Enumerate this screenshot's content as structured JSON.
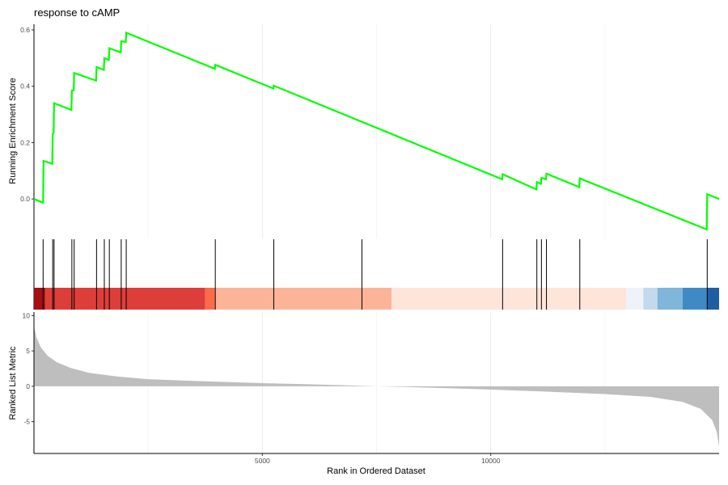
{
  "chart_data": {
    "type": "line",
    "title": "response to cAMP",
    "xlabel": "Rank in Ordered Dataset",
    "xlim": [
      0,
      15000
    ],
    "x_ticks": [
      5000,
      10000
    ],
    "panels": {
      "enrichment": {
        "ylabel": "Running Enrichment Score",
        "ylim": [
          -0.14,
          0.62
        ],
        "y_ticks": [
          "0.6",
          "0.4",
          "0.2",
          "0.0"
        ],
        "y_tick_values": [
          0.6,
          0.4,
          0.2,
          0.0
        ],
        "line_color": "#00ff00",
        "points": [
          [
            0,
            0.0
          ],
          [
            200,
            -0.013
          ],
          [
            210,
            0.135
          ],
          [
            400,
            0.125
          ],
          [
            410,
            0.23
          ],
          [
            430,
            0.235
          ],
          [
            440,
            0.34
          ],
          [
            820,
            0.316
          ],
          [
            830,
            0.385
          ],
          [
            870,
            0.385
          ],
          [
            880,
            0.447
          ],
          [
            1360,
            0.42
          ],
          [
            1370,
            0.468
          ],
          [
            1530,
            0.458
          ],
          [
            1540,
            0.5
          ],
          [
            1640,
            0.493
          ],
          [
            1650,
            0.535
          ],
          [
            1900,
            0.52
          ],
          [
            1910,
            0.56
          ],
          [
            2010,
            0.557
          ],
          [
            2020,
            0.59
          ],
          [
            3960,
            0.462
          ],
          [
            3970,
            0.476
          ],
          [
            5240,
            0.392
          ],
          [
            5250,
            0.402
          ],
          [
            10250,
            0.07
          ],
          [
            10260,
            0.088
          ],
          [
            11000,
            0.034
          ],
          [
            11010,
            0.06
          ],
          [
            11100,
            0.054
          ],
          [
            11110,
            0.075
          ],
          [
            11210,
            0.07
          ],
          [
            11220,
            0.09
          ],
          [
            11940,
            0.042
          ],
          [
            11950,
            0.073
          ],
          [
            14730,
            -0.108
          ],
          [
            14740,
            0.017
          ],
          [
            15000,
            0.0
          ]
        ]
      },
      "hits": {
        "positions": [
          200,
          410,
          440,
          830,
          880,
          1370,
          1540,
          1650,
          1910,
          2020,
          3970,
          5250,
          7180,
          10260,
          11010,
          11110,
          11220,
          11950,
          14740
        ]
      },
      "rank_color_bar": {
        "segments": [
          {
            "start": 0,
            "end": 250,
            "color": "#a50f15"
          },
          {
            "start": 250,
            "end": 3750,
            "color": "#de3e3a"
          },
          {
            "start": 3750,
            "end": 3960,
            "color": "#fb6a4a"
          },
          {
            "start": 3960,
            "end": 7830,
            "color": "#fcb499"
          },
          {
            "start": 7830,
            "end": 12970,
            "color": "#fee4d9"
          },
          {
            "start": 12970,
            "end": 13340,
            "color": "#eef3fa"
          },
          {
            "start": 13340,
            "end": 13650,
            "color": "#c4d9ec"
          },
          {
            "start": 13650,
            "end": 14200,
            "color": "#7fb6da"
          },
          {
            "start": 14200,
            "end": 14740,
            "color": "#3f8ac4"
          },
          {
            "start": 14740,
            "end": 15000,
            "color": "#1d5fa2"
          }
        ]
      },
      "ranked_metric": {
        "ylabel": "Ranked List Metric",
        "ylim": [
          -9.5,
          10.5
        ],
        "y_ticks": [
          "10",
          "5",
          "0",
          "-5"
        ],
        "y_tick_values": [
          10,
          5,
          0,
          -5
        ],
        "fill_color": "#bebebe",
        "points": [
          [
            0,
            8.5
          ],
          [
            50,
            7.0
          ],
          [
            150,
            5.5
          ],
          [
            300,
            4.3
          ],
          [
            500,
            3.4
          ],
          [
            800,
            2.6
          ],
          [
            1200,
            1.9
          ],
          [
            1800,
            1.4
          ],
          [
            2500,
            1.0
          ],
          [
            3500,
            0.75
          ],
          [
            5000,
            0.45
          ],
          [
            6500,
            0.2
          ],
          [
            7300,
            0.05
          ],
          [
            7500,
            0.0
          ],
          [
            8200,
            -0.1
          ],
          [
            9500,
            -0.35
          ],
          [
            11000,
            -0.7
          ],
          [
            12500,
            -1.1
          ],
          [
            13500,
            -1.5
          ],
          [
            14200,
            -2.2
          ],
          [
            14600,
            -3.2
          ],
          [
            14850,
            -4.8
          ],
          [
            14950,
            -6.5
          ],
          [
            15000,
            -8.6
          ]
        ]
      }
    }
  }
}
